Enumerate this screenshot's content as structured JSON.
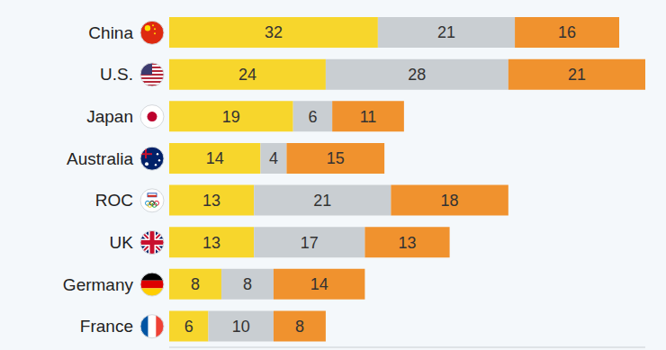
{
  "chart_data": {
    "type": "bar",
    "orientation": "horizontal",
    "stacked": true,
    "data_labels": true,
    "grid": false,
    "tick_labels": "y",
    "categories": [
      "China",
      "U.S.",
      "Japan",
      "Australia",
      "ROC",
      "UK",
      "Germany",
      "France"
    ],
    "series": [
      {
        "color": "#f7d62c",
        "values": [
          32,
          24,
          19,
          14,
          13,
          13,
          8,
          6
        ]
      },
      {
        "color": "#c9ced2",
        "values": [
          21,
          28,
          6,
          4,
          21,
          17,
          8,
          10
        ]
      },
      {
        "color": "#f0922e",
        "values": [
          16,
          21,
          11,
          15,
          18,
          13,
          14,
          8
        ]
      }
    ],
    "xlim": [
      0,
      73
    ]
  }
}
